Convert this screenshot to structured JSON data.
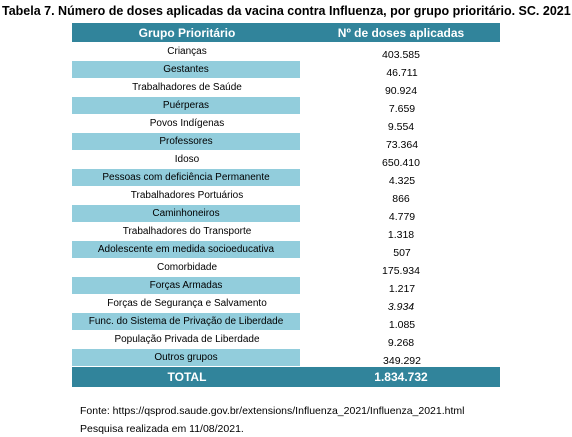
{
  "title": "Tabela 7. Número de doses aplicadas da vacina contra Influenza, por grupo prioritário. SC. 2021",
  "table": {
    "headers": [
      "Grupo Prioritário",
      "Nº de doses aplicadas"
    ],
    "rows": [
      {
        "group": "Crianças",
        "doses": "403.585",
        "shaded": false,
        "italic": false
      },
      {
        "group": "Gestantes",
        "doses": "46.711",
        "shaded": true,
        "italic": false
      },
      {
        "group": "Trabalhadores de Saúde",
        "doses": "90.924",
        "shaded": false,
        "italic": false
      },
      {
        "group": "Puérperas",
        "doses": "7.659",
        "shaded": true,
        "italic": false
      },
      {
        "group": "Povos Indígenas",
        "doses": "9.554",
        "shaded": false,
        "italic": false
      },
      {
        "group": "Professores",
        "doses": "73.364",
        "shaded": true,
        "italic": false
      },
      {
        "group": "Idoso",
        "doses": "650.410",
        "shaded": false,
        "italic": false
      },
      {
        "group": "Pessoas com deficiência Permanente",
        "doses": "4.325",
        "shaded": true,
        "italic": false
      },
      {
        "group": "Trabalhadores Portuários",
        "doses": "866",
        "shaded": false,
        "italic": false
      },
      {
        "group": "Caminhoneiros",
        "doses": "4.779",
        "shaded": true,
        "italic": false
      },
      {
        "group": "Trabalhadores do Transporte",
        "doses": "1.318",
        "shaded": false,
        "italic": false
      },
      {
        "group": "Adolescente em medida socioeducativa",
        "doses": "507",
        "shaded": true,
        "italic": false
      },
      {
        "group": "Comorbidade",
        "doses": "175.934",
        "shaded": false,
        "italic": false
      },
      {
        "group": "Forças Armadas",
        "doses": "1.217",
        "shaded": true,
        "italic": false
      },
      {
        "group": "Forças de Segurança e Salvamento",
        "doses": "3.934",
        "shaded": false,
        "italic": true
      },
      {
        "group": "Func. do Sistema de Privação de Liberdade",
        "doses": "1.085",
        "shaded": true,
        "italic": false
      },
      {
        "group": "População Privada de Liberdade",
        "doses": "9.268",
        "shaded": false,
        "italic": false
      },
      {
        "group": "Outros grupos",
        "doses": "349.292",
        "shaded": true,
        "italic": false
      }
    ],
    "total_label": "TOTAL",
    "total_value": "1.834.732"
  },
  "footer": {
    "source": "Fonte: https://qsprod.saude.gov.br/extensions/Influenza_2021/Influenza_2021.html",
    "date": "Pesquisa realizada em 11/08/2021."
  },
  "colors": {
    "header_bg": "#31849b",
    "shaded_row_bg": "#92cddc",
    "header_text": "#ffffff"
  }
}
